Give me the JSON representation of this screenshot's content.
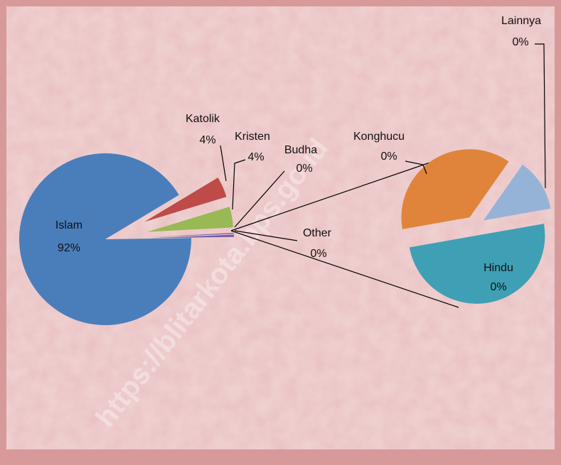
{
  "chart_data": {
    "type": "pie-of-pie",
    "categories": [
      "Islam",
      "Katolik",
      "Kristen",
      "Budha",
      "Other"
    ],
    "values": [
      91.6,
      3.9,
      3.9,
      0.2,
      0.4
    ],
    "value_labels": [
      "92%",
      "4%",
      "4%",
      "0%",
      "0%"
    ],
    "colors": [
      "#4a7ebb",
      "#be4b48",
      "#98b954",
      "#7d60a0",
      "#6f5aa8"
    ],
    "secondary": {
      "categories": [
        "Lainnya",
        "Konghucu",
        "Hindu"
      ],
      "values": [
        0.05,
        0.15,
        0.2
      ],
      "value_labels": [
        "0%",
        "0%",
        "0%"
      ],
      "colors": [
        "#95b3d7",
        "#e0843b",
        "#3f9fb5"
      ]
    }
  },
  "watermark": "https://blitarkota.bps.go.id"
}
